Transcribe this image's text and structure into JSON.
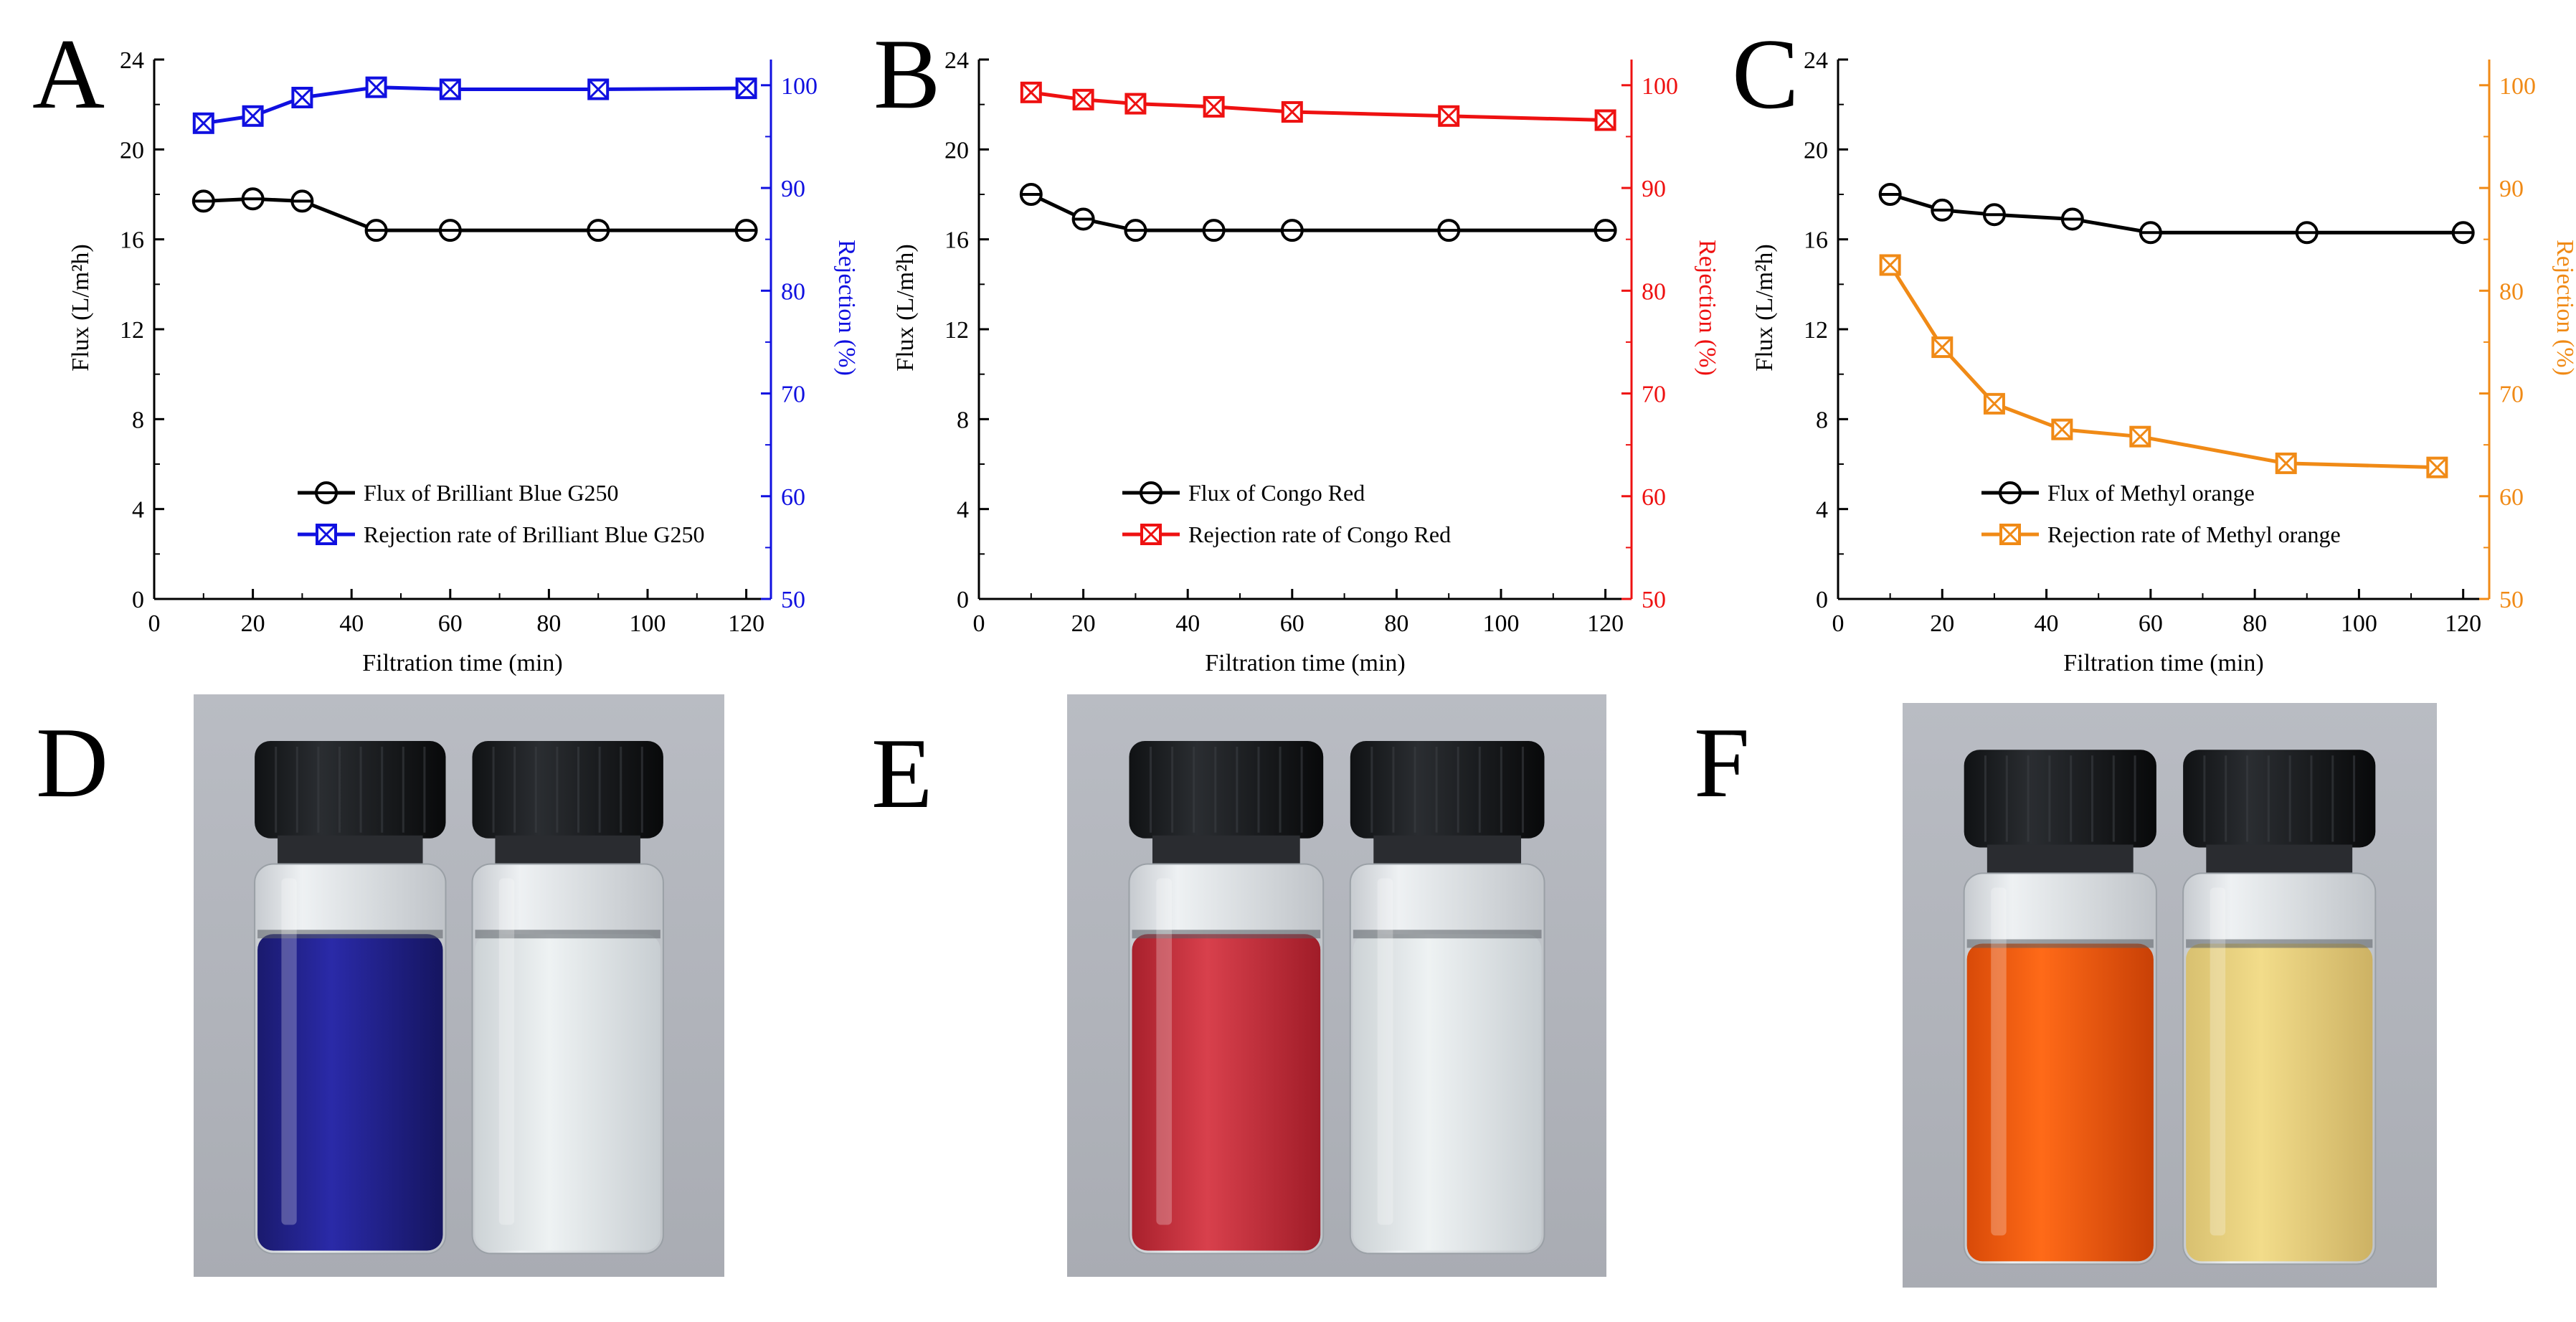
{
  "figure": {
    "panel_labels": [
      "A",
      "B",
      "C",
      "D",
      "E",
      "F"
    ],
    "photo_captions": [
      "Brilliant Blue G250 feed and permeate vials",
      "Congo Red feed and permeate vials",
      "Methyl orange feed and permeate vials"
    ]
  },
  "colors": {
    "axis": "#000000",
    "flux": "#000000",
    "panelA_rej": "#1010e0",
    "panelB_rej": "#ee1111",
    "panelC_rej": "#f08a16"
  },
  "chart_data": [
    {
      "type": "line",
      "panel": "A",
      "xlabel": "Filtration time (min)",
      "ylabel_left": "Flux (L/m²h)",
      "ylabel_right": "Rejection (%)",
      "xlim": [
        0,
        125
      ],
      "ylim_left": [
        0,
        24
      ],
      "ylim_right": [
        50,
        102.5
      ],
      "xticks": [
        0,
        20,
        40,
        60,
        80,
        100,
        120
      ],
      "yticks_left": [
        0,
        4,
        8,
        12,
        16,
        20,
        24
      ],
      "yticks_right": [
        50,
        60,
        70,
        80,
        90,
        100
      ],
      "series": [
        {
          "name": "Flux of Brilliant Blue G250",
          "axis": "left",
          "marker": "circle-bar",
          "x": [
            10,
            20,
            30,
            45,
            60,
            90,
            120
          ],
          "y": [
            17.7,
            17.8,
            17.7,
            16.4,
            16.4,
            16.4,
            16.4
          ]
        },
        {
          "name": "Rejection rate of Brilliant Blue G250",
          "axis": "right",
          "marker": "square-x",
          "x": [
            10,
            20,
            30,
            45,
            60,
            90,
            120
          ],
          "y": [
            96.3,
            97,
            98.8,
            99.8,
            99.6,
            99.6,
            99.7
          ]
        }
      ]
    },
    {
      "type": "line",
      "panel": "B",
      "xlabel": "Filtration time (min)",
      "ylabel_left": "Flux (L/m²h)",
      "ylabel_right": "Rejection (%)",
      "xlim": [
        0,
        125
      ],
      "ylim_left": [
        0,
        24
      ],
      "ylim_right": [
        50,
        102.5
      ],
      "xticks": [
        0,
        20,
        40,
        60,
        80,
        100,
        120
      ],
      "yticks_left": [
        0,
        4,
        8,
        12,
        16,
        20,
        24
      ],
      "yticks_right": [
        50,
        60,
        70,
        80,
        90,
        100
      ],
      "series": [
        {
          "name": "Flux of Congo Red",
          "axis": "left",
          "marker": "circle-bar",
          "x": [
            10,
            20,
            30,
            45,
            60,
            90,
            120
          ],
          "y": [
            18,
            16.9,
            16.4,
            16.4,
            16.4,
            16.4,
            16.4
          ]
        },
        {
          "name": "Rejection rate of Congo Red",
          "axis": "right",
          "marker": "square-x",
          "x": [
            10,
            20,
            30,
            45,
            60,
            90,
            120
          ],
          "y": [
            99.3,
            98.6,
            98.2,
            97.9,
            97.4,
            97,
            96.6
          ]
        }
      ]
    },
    {
      "type": "line",
      "panel": "C",
      "xlabel": "Filtration time (min)",
      "ylabel_left": "Flux (L/m²h)",
      "ylabel_right": "Rejection (%)",
      "xlim": [
        0,
        125
      ],
      "ylim_left": [
        0,
        24
      ],
      "ylim_right": [
        50,
        102.5
      ],
      "xticks": [
        0,
        20,
        40,
        60,
        80,
        100,
        120
      ],
      "yticks_left": [
        0,
        4,
        8,
        12,
        16,
        20,
        24
      ],
      "yticks_right": [
        50,
        60,
        70,
        80,
        90,
        100
      ],
      "series": [
        {
          "name": "Flux of Methyl orange",
          "axis": "left",
          "marker": "circle-bar",
          "x": [
            10,
            20,
            30,
            45,
            60,
            90,
            120
          ],
          "y": [
            18,
            17.3,
            17.1,
            16.9,
            16.3,
            16.3,
            16.3
          ]
        },
        {
          "name": "Rejection rate of Methyl orange",
          "axis": "right",
          "marker": "square-x",
          "x": [
            10,
            20,
            30,
            43,
            58,
            86,
            115
          ],
          "y": [
            82.5,
            74.5,
            69,
            66.5,
            65.8,
            63.2,
            62.8
          ]
        }
      ]
    }
  ]
}
